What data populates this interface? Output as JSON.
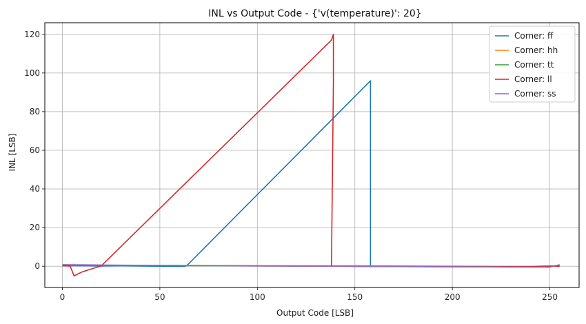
{
  "chart_data": {
    "type": "line",
    "title": "INL vs Output Code - {'v(temperature)': 20}",
    "xlabel": "Output Code [LSB]",
    "ylabel": "INL [LSB]",
    "xlim": [
      -9,
      265
    ],
    "ylim": [
      -11,
      126
    ],
    "xticks": [
      0,
      50,
      100,
      150,
      200,
      250
    ],
    "yticks": [
      0,
      20,
      40,
      60,
      80,
      100,
      120
    ],
    "xtick_labels": [
      "0",
      "50",
      "100",
      "150",
      "200",
      "250"
    ],
    "ytick_labels": [
      "0",
      "20",
      "40",
      "60",
      "80",
      "100",
      "120"
    ],
    "grid": true,
    "legend_position": "top-right",
    "series": [
      {
        "name": "Corner: ff",
        "color": "#1f77b4",
        "x": [
          0,
          10,
          20,
          30,
          40,
          50,
          63,
          64,
          158,
          158,
          170,
          190,
          210,
          230,
          255
        ],
        "y": [
          0.3,
          0.2,
          0.1,
          0.2,
          0.1,
          0.0,
          0.0,
          0.5,
          96,
          0.0,
          -0.2,
          -0.3,
          -0.3,
          -0.4,
          0.2
        ]
      },
      {
        "name": "Corner: hh",
        "color": "#ff7f0e",
        "x": [
          0,
          30,
          60,
          90,
          120,
          150,
          180,
          210,
          240,
          255
        ],
        "y": [
          0.4,
          0.5,
          0.4,
          0.3,
          0.2,
          0.2,
          0.1,
          0.0,
          -0.1,
          0.3
        ]
      },
      {
        "name": "Corner: tt",
        "color": "#2ca02c",
        "x": [
          0,
          30,
          60,
          90,
          120,
          150,
          180,
          210,
          240,
          255
        ],
        "y": [
          0.3,
          0.4,
          0.3,
          0.2,
          0.1,
          0.0,
          -0.1,
          -0.2,
          -0.3,
          0.2
        ]
      },
      {
        "name": "Corner: ll",
        "color": "#d62728",
        "x": [
          0,
          4,
          6,
          10,
          20,
          138,
          139,
          139,
          138,
          138,
          150,
          180,
          210,
          240,
          255
        ],
        "y": [
          0.2,
          0.1,
          -5,
          -3,
          0.2,
          117,
          120,
          95,
          0.0,
          0.0,
          -0.1,
          -0.2,
          -0.3,
          -0.2,
          0.0
        ]
      },
      {
        "name": "Corner: ss",
        "color": "#9467bd",
        "x": [
          0,
          25,
          50,
          75,
          100,
          125,
          150,
          175,
          200,
          225,
          250,
          255
        ],
        "y": [
          0.8,
          0.6,
          0.4,
          0.3,
          0.1,
          0.0,
          -0.1,
          -0.2,
          -0.3,
          -0.4,
          -0.5,
          0.8
        ]
      }
    ]
  }
}
